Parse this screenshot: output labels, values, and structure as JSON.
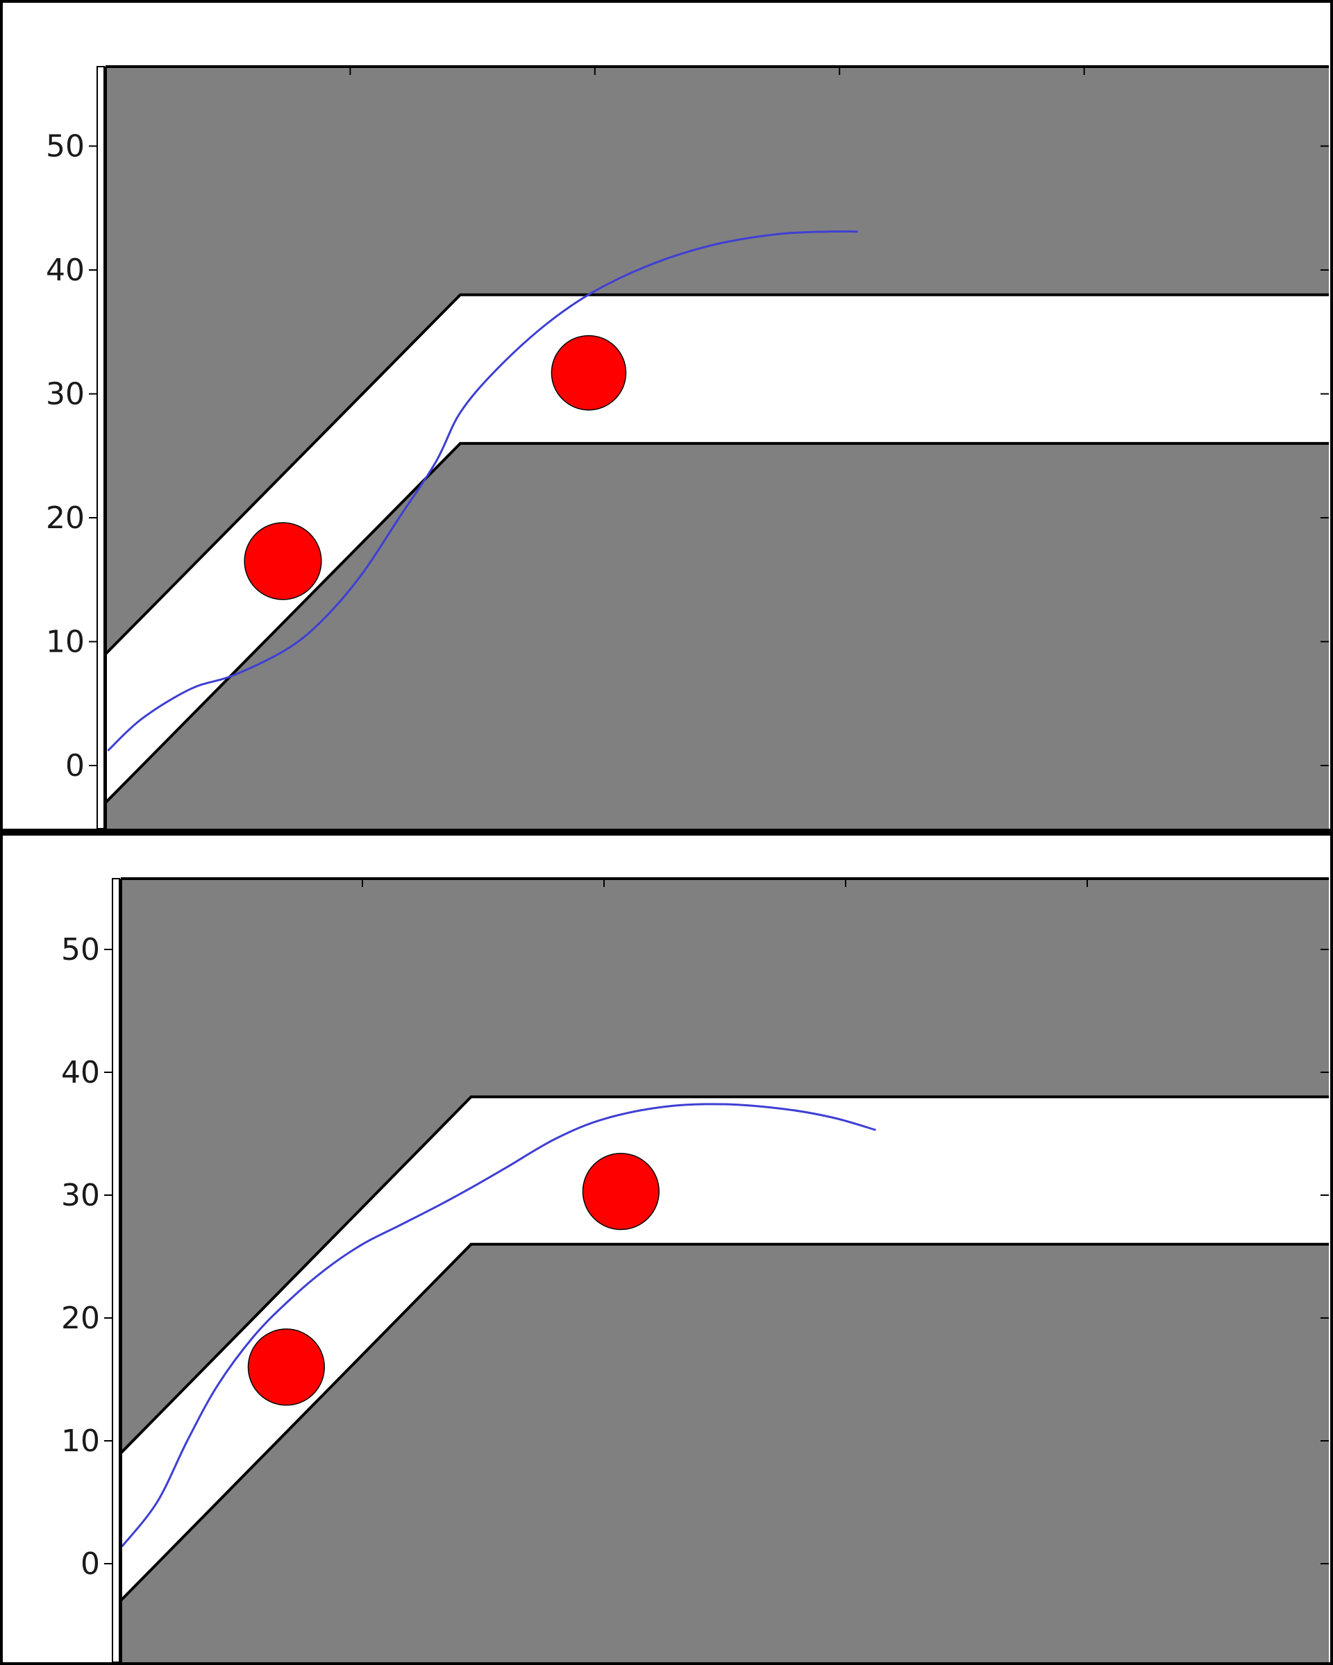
{
  "chart_data": [
    {
      "type": "line",
      "title": "",
      "xlabel": "",
      "ylabel": "",
      "ylim": [
        -5,
        56
      ],
      "xlim": [
        0,
        100
      ],
      "yticks": [
        0,
        10,
        20,
        30,
        40,
        50
      ],
      "xticks": [
        20,
        40,
        60,
        80
      ],
      "grid": false,
      "background_color": "#808080",
      "road_color": "#ffffff",
      "road": {
        "upper": [
          [
            0,
            9
          ],
          [
            29,
            38
          ],
          [
            100,
            38
          ]
        ],
        "lower": [
          [
            0,
            -3
          ],
          [
            29,
            26
          ],
          [
            100,
            26
          ]
        ]
      },
      "obstacles": [
        {
          "x": 14.5,
          "y": 16.5,
          "r": 3.1,
          "color": "#ff0000"
        },
        {
          "x": 39.5,
          "y": 31.7,
          "r": 3.0,
          "color": "#ff0000"
        }
      ],
      "series": [
        {
          "name": "trajectory",
          "color": "#3f3fd4",
          "x": [
            0.2,
            3,
            7,
            10.5,
            15,
            18,
            21,
            24,
            27,
            29,
            32,
            36,
            40,
            45,
            50,
            55,
            59,
            61.5
          ],
          "y": [
            1.2,
            3.8,
            6.2,
            7.3,
            9.5,
            12,
            15.5,
            20,
            24.5,
            28.5,
            32,
            35.6,
            38.3,
            40.6,
            42.1,
            42.9,
            43.1,
            43.1
          ]
        }
      ]
    },
    {
      "type": "line",
      "title": "",
      "xlabel": "",
      "ylabel": "",
      "ylim": [
        -5,
        56
      ],
      "xlim": [
        0,
        100
      ],
      "yticks": [
        0,
        10,
        20,
        30,
        40,
        50
      ],
      "xticks": [
        20,
        40,
        60,
        80
      ],
      "grid": false,
      "background_color": "#808080",
      "road_color": "#ffffff",
      "road": {
        "upper": [
          [
            0,
            9
          ],
          [
            29,
            38
          ],
          [
            100,
            38
          ]
        ],
        "lower": [
          [
            0,
            -3
          ],
          [
            29,
            26
          ],
          [
            100,
            26
          ]
        ]
      },
      "obstacles": [
        {
          "x": 13.7,
          "y": 16,
          "r": 3.1,
          "color": "#ff0000"
        },
        {
          "x": 41.4,
          "y": 30.3,
          "r": 3.1,
          "color": "#ff0000"
        }
      ],
      "series": [
        {
          "name": "trajectory",
          "color": "#3f3fd4",
          "x": [
            0.1,
            3,
            5.5,
            8,
            11,
            14,
            17,
            20,
            23,
            26,
            29,
            32,
            36,
            40,
            45,
            50,
            55,
            59,
            62.5
          ],
          "y": [
            1.4,
            5,
            10,
            14.5,
            18.5,
            21.5,
            24,
            26,
            27.5,
            29,
            30.6,
            32.3,
            34.6,
            36.2,
            37.2,
            37.4,
            37,
            36.3,
            35.3
          ]
        }
      ]
    }
  ]
}
